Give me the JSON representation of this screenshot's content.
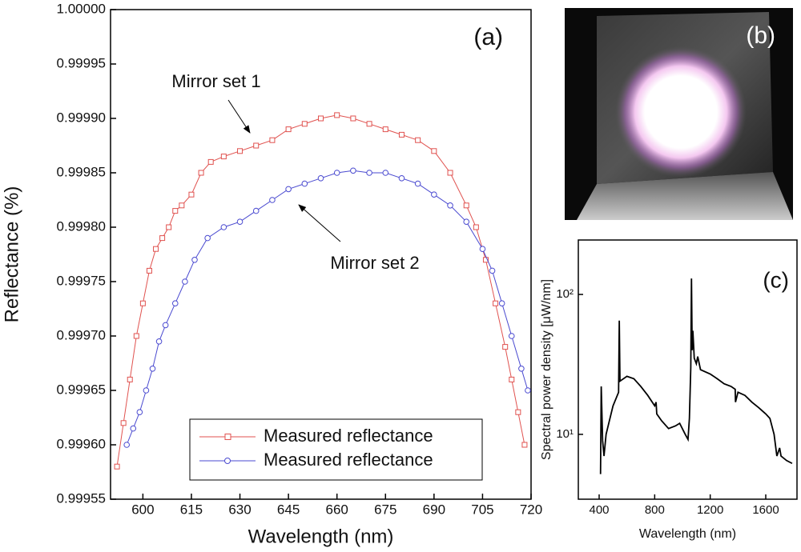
{
  "chart_data": [
    {
      "type": "line",
      "panel_label": "(a)",
      "x_label": "Wavelength (nm)",
      "y_label": "Reflectance (%)",
      "xlim": [
        590,
        720
      ],
      "xticks": [
        600,
        615,
        630,
        645,
        660,
        675,
        690,
        705,
        720
      ],
      "ylim": [
        0.99955,
        1.0
      ],
      "yticks": [
        0.99955,
        {
          "value": 0.9996,
          "label": "0.99960"
        },
        0.99965,
        {
          "value": 0.9997,
          "label": "0.99970"
        },
        0.99975,
        {
          "value": 0.9998,
          "label": "0.99980"
        },
        0.99985,
        {
          "value": 0.9999,
          "label": "0.99990"
        },
        0.99995,
        {
          "value": 1.0,
          "label": "1.00000"
        }
      ],
      "legend": "bottom-center",
      "annotations": [
        "Mirror set 1",
        "Mirror set 2"
      ],
      "series": [
        {
          "name": "Measured reflectance",
          "color": "#e0524f",
          "marker": "square",
          "x": [
            592,
            594,
            596,
            598,
            600,
            602,
            604,
            606,
            608,
            610,
            612,
            615,
            618,
            621,
            625,
            630,
            635,
            640,
            645,
            650,
            655,
            660,
            665,
            670,
            675,
            680,
            685,
            690,
            695,
            700,
            703,
            706,
            709,
            712,
            714,
            716,
            718
          ],
          "values": [
            0.99958,
            0.99962,
            0.99966,
            0.9997,
            0.99973,
            0.99976,
            0.99978,
            0.99979,
            0.9998,
            0.999815,
            0.99982,
            0.99983,
            0.99985,
            0.99986,
            0.999865,
            0.99987,
            0.999875,
            0.99988,
            0.99989,
            0.999895,
            0.9999,
            0.999903,
            0.9999,
            0.999895,
            0.99989,
            0.999885,
            0.99988,
            0.99987,
            0.99985,
            0.99982,
            0.9998,
            0.99977,
            0.99973,
            0.99969,
            0.99966,
            0.99963,
            0.9996
          ]
        },
        {
          "name": "Measured reflectance",
          "color": "#4a4ad0",
          "marker": "circle",
          "x": [
            595,
            597,
            599,
            601,
            603,
            605,
            607,
            610,
            613,
            616,
            620,
            625,
            630,
            635,
            640,
            645,
            650,
            655,
            660,
            665,
            670,
            675,
            680,
            685,
            690,
            695,
            700,
            705,
            708,
            711,
            714,
            717,
            719
          ],
          "values": [
            0.9996,
            0.999615,
            0.99963,
            0.99965,
            0.99967,
            0.999695,
            0.99971,
            0.99973,
            0.99975,
            0.99977,
            0.99979,
            0.9998,
            0.999805,
            0.999815,
            0.999825,
            0.999835,
            0.99984,
            0.999845,
            0.99985,
            0.999852,
            0.99985,
            0.99985,
            0.999845,
            0.99984,
            0.99983,
            0.99982,
            0.999805,
            0.99978,
            0.99976,
            0.99973,
            0.9997,
            0.99967,
            0.99965
          ]
        }
      ]
    },
    {
      "type": "line",
      "panel_label": "(c)",
      "x_label": "Wavelength (nm)",
      "y_label": "Spectral power density [μW/nm]",
      "y_scale": "log",
      "xlim": [
        250,
        1825
      ],
      "xticks": [
        400,
        800,
        1200,
        1600
      ],
      "ylim": [
        3.44,
        245
      ],
      "yticks": [
        {
          "value": 10,
          "label": "10¹"
        },
        {
          "value": 100,
          "label": "10²"
        }
      ],
      "series": [
        {
          "color": "#000000",
          "x": [
            410,
            415,
            425,
            435,
            450,
            500,
            540,
            545,
            550,
            600,
            650,
            700,
            750,
            800,
            810,
            815,
            850,
            900,
            950,
            980,
            1020,
            1040,
            1050,
            1060,
            1065,
            1070,
            1075,
            1085,
            1100,
            1110,
            1130,
            1200,
            1250,
            1300,
            1350,
            1380,
            1382,
            1400,
            1450,
            1500,
            1550,
            1600,
            1630,
            1660,
            1680,
            1700,
            1710,
            1750,
            1790
          ],
          "values": [
            5.2,
            22,
            9,
            7,
            10,
            16,
            20,
            65,
            24,
            26,
            25,
            22,
            19,
            16,
            17,
            14,
            12.5,
            11,
            11.5,
            12,
            10,
            9.2,
            13,
            30,
            130,
            40,
            55,
            35,
            32,
            36,
            29,
            27,
            25,
            23,
            22,
            21,
            17,
            20,
            19,
            17,
            15.5,
            14,
            13,
            10,
            7,
            8,
            7,
            6.5,
            6.2
          ]
        }
      ]
    }
  ],
  "image_panel": {
    "label": "(b)"
  }
}
